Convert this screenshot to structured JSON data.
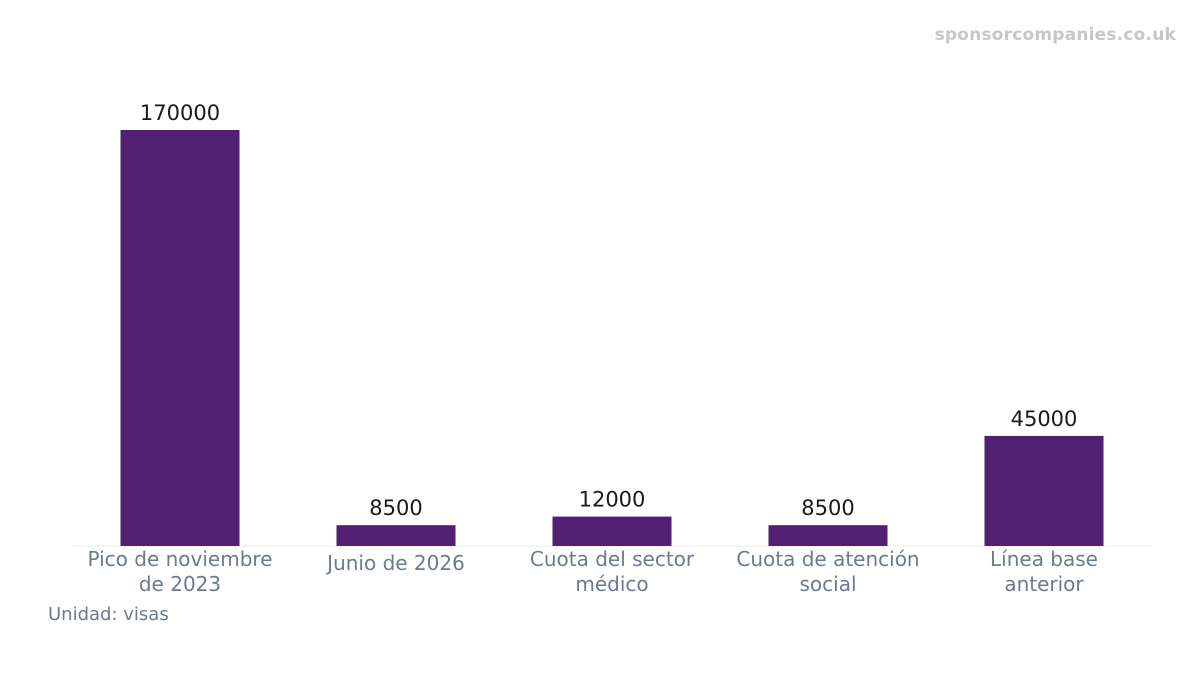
{
  "watermark": "sponsorcompanies.co.uk",
  "unit_note": "Unidad: visas",
  "chart_data": {
    "type": "bar",
    "categories": [
      [
        "Pico de noviembre",
        "de 2023"
      ],
      [
        "Junio de 2026"
      ],
      [
        "Cuota del sector",
        "médico"
      ],
      [
        "Cuota de atención",
        "social"
      ],
      [
        "Línea base",
        "anterior"
      ]
    ],
    "values": [
      170000,
      8500,
      12000,
      8500,
      45000
    ],
    "value_labels": [
      "170000",
      "8500",
      "12000",
      "8500",
      "45000"
    ],
    "title": "",
    "xlabel": "",
    "ylabel": "",
    "ylim": [
      0,
      170000
    ],
    "grid": false,
    "legend": "none",
    "colors": {
      "bar": "#522073",
      "baseline": "#eeeeee",
      "value_label": "#1a1a1a",
      "category_label": "#6b7a90"
    }
  }
}
